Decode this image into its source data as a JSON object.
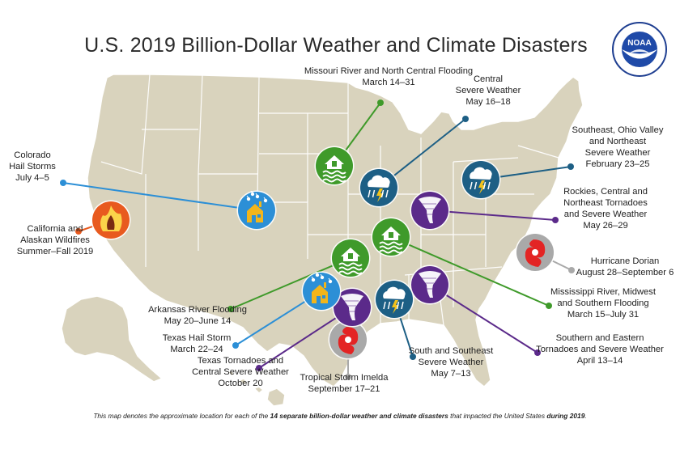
{
  "title": "U.S. 2019 Billion-Dollar Weather and Climate Disasters",
  "logo": {
    "text": "NOAA",
    "ring_text": "NATIONAL OCEANIC AND ATMOSPHERIC ADMINISTRATION · U.S. DEPARTMENT OF COMMERCE"
  },
  "colors": {
    "map_fill": "#d9d3bd",
    "map_stroke": "#ffffff",
    "flood": "#3f9a2a",
    "severe": "#1d5f85",
    "tornado": "#5b2a8a",
    "hail": "#2c8fd6",
    "wildfire": "#e85a1f",
    "hurricane": "#a9a9a9"
  },
  "events": [
    {
      "id": "missouri-flooding",
      "type": "flood",
      "icon": "house-flood-icon",
      "lines": [
        "Missouri River and North Central Flooding",
        "March 14–31"
      ]
    },
    {
      "id": "central-severe",
      "type": "severe",
      "icon": "storm-cloud-icon",
      "lines": [
        "Central",
        "Severe Weather",
        "May 16–18"
      ]
    },
    {
      "id": "southeast-ohio-severe",
      "type": "severe",
      "icon": "storm-cloud-icon",
      "lines": [
        "Southeast, Ohio Valley",
        "and Northeast",
        "Severe Weather",
        "February 23–25"
      ]
    },
    {
      "id": "colorado-hail",
      "type": "hail",
      "icon": "hail-house-icon",
      "lines": [
        "Colorado",
        "Hail Storms",
        "July 4–5"
      ]
    },
    {
      "id": "california-wildfires",
      "type": "wildfire",
      "icon": "wildfire-icon",
      "lines": [
        "California and",
        "Alaskan Wildfires",
        "Summer–Fall 2019"
      ]
    },
    {
      "id": "rockies-tornadoes",
      "type": "tornado",
      "icon": "tornado-icon",
      "lines": [
        "Rockies, Central and",
        "Northeast Tornadoes",
        "and Severe Weather",
        "May 26–29"
      ]
    },
    {
      "id": "hurricane-dorian",
      "type": "hurricane",
      "icon": "hurricane-icon",
      "lines": [
        "Hurricane Dorian",
        "August 28–September 6"
      ]
    },
    {
      "id": "mississippi-flooding",
      "type": "flood",
      "icon": "house-flood-icon",
      "lines": [
        "Mississippi River, Midwest",
        "and Southern Flooding",
        "March 15–July 31"
      ]
    },
    {
      "id": "southern-eastern-tornadoes",
      "type": "tornado",
      "icon": "tornado-icon",
      "lines": [
        "Southern and Eastern",
        "Tornadoes and Severe Weather",
        "April 13–14"
      ]
    },
    {
      "id": "south-southeast-severe",
      "type": "severe",
      "icon": "storm-cloud-icon",
      "lines": [
        "South and Southeast",
        "Severe Weather",
        "May 7–13"
      ]
    },
    {
      "id": "tropical-storm-imelda",
      "type": "hurricane",
      "icon": "hurricane-icon",
      "lines": [
        "Tropical Storm Imelda",
        "September 17–21"
      ]
    },
    {
      "id": "texas-tornadoes",
      "type": "tornado",
      "icon": "tornado-icon",
      "lines": [
        "Texas Tornadoes and",
        "Central Severe Weather",
        "October 20"
      ]
    },
    {
      "id": "texas-hail",
      "type": "hail",
      "icon": "hail-house-icon",
      "lines": [
        "Texas Hail Storm",
        "March 22–24"
      ]
    },
    {
      "id": "arkansas-flooding",
      "type": "flood",
      "icon": "house-flood-icon",
      "lines": [
        "Arkansas River Flooding",
        "May 20–June 14"
      ]
    }
  ],
  "footer": {
    "prefix": "This map denotes the approximate location for each of the ",
    "bold1": "14 separate billion-dollar weather and climate disasters",
    "middle": " that impacted the United States ",
    "bold2": "during 2019",
    "suffix": "."
  }
}
